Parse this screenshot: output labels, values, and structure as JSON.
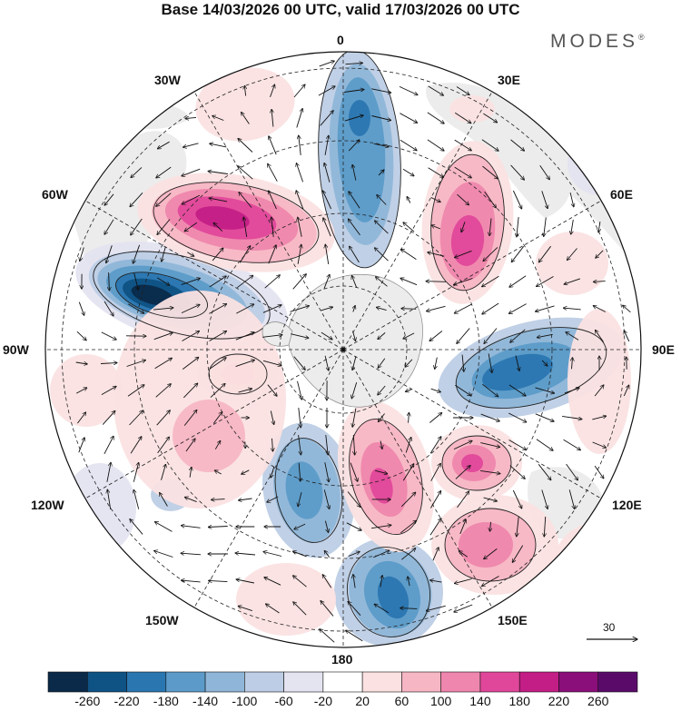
{
  "title": "Base 14/03/2026 00 UTC, valid 17/03/2026 00 UTC",
  "brand": {
    "name": "MODES",
    "mark": "®"
  },
  "longitude_labels": {
    "l0": "0",
    "l30e": "30E",
    "l60e": "60E",
    "l90e": "90E",
    "l120e": "120E",
    "l150e": "150E",
    "l180": "180",
    "l150w": "150W",
    "l120w": "120W",
    "l90w": "90W",
    "l60w": "60W",
    "l30w": "30W"
  },
  "reference_vector": {
    "label": "30"
  },
  "colorbar": {
    "colors": [
      "#0b2a4a",
      "#0f5284",
      "#2a76b0",
      "#5c9bc9",
      "#8fb6d8",
      "#bdcde5",
      "#e4e4f1",
      "#ffffff",
      "#fbe1e1",
      "#f7b6c4",
      "#ef86ad",
      "#e0479a",
      "#c31d86",
      "#8a0f7a",
      "#5a0b6a"
    ],
    "labels": [
      "-260",
      "-220",
      "-180",
      "-140",
      "-100",
      "-60",
      "-20",
      "20",
      "60",
      "100",
      "140",
      "180",
      "220",
      "260"
    ]
  },
  "map": {
    "land_color": "#ececec",
    "continent_color": "#e3e3e3"
  }
}
